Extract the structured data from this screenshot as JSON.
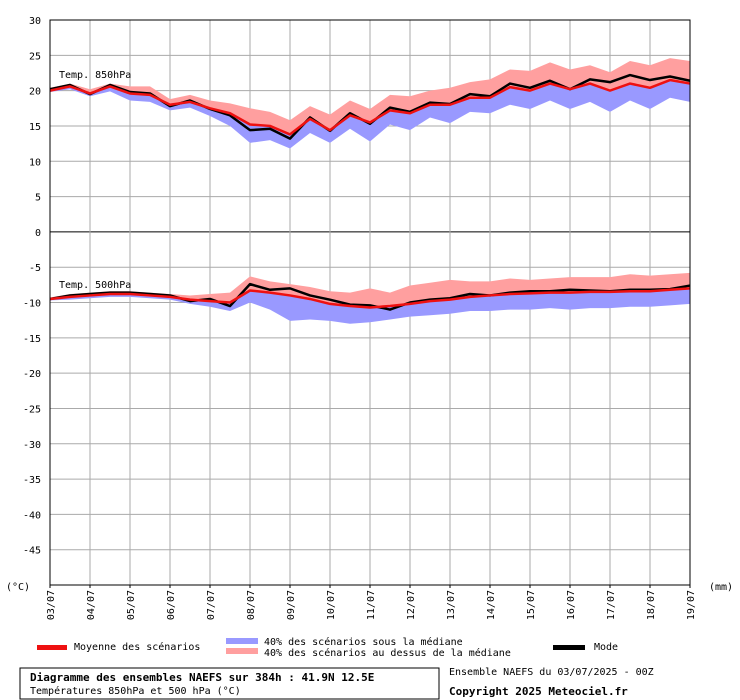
{
  "chart_data": {
    "type": "line",
    "title": "Diagramme des ensembles NAEFS sur 384h : 41.9N 12.5E",
    "subtitle": "Températures 850hPa et 500 hPa (°C)",
    "run_info": "Ensemble NAEFS du 03/07/2025 - 00Z",
    "copyright": "Copyright 2025 Meteociel.fr",
    "ylabel_left": "(°C)",
    "ylabel_right": "(mm)",
    "ylim": [
      -50,
      30
    ],
    "yticks": [
      30,
      25,
      20,
      15,
      10,
      5,
      0,
      -5,
      -10,
      -15,
      -20,
      -25,
      -30,
      -35,
      -40,
      -45
    ],
    "xlim": [
      0,
      16
    ],
    "x_tick_labels": [
      "03/07",
      "04/07",
      "05/07",
      "06/07",
      "07/07",
      "08/07",
      "09/07",
      "10/07",
      "11/07",
      "12/07",
      "13/07",
      "14/07",
      "15/07",
      "16/07",
      "17/07",
      "18/07",
      "19/07"
    ],
    "grid": true,
    "legend": {
      "position": "bottom",
      "mean": "Moyenne des scénarios",
      "below": "40% des scénarios sous la médiane",
      "above": "40% des scénarios au dessus de la médiane",
      "mode": "Mode"
    },
    "colors": {
      "mean": "#ee1111",
      "mode": "#000000",
      "band_below": "#9999ff",
      "band_above": "#ff9f9f",
      "grid": "#aaaaaa"
    },
    "panels": [
      {
        "name": "Temp. 850hPa",
        "x": [
          0,
          0.5,
          1,
          1.5,
          2,
          2.5,
          3,
          3.5,
          4,
          4.5,
          5,
          5.5,
          6,
          6.5,
          7,
          7.5,
          8,
          8.5,
          9,
          9.5,
          10,
          10.5,
          11,
          11.5,
          12,
          12.5,
          13,
          13.5,
          14,
          14.5,
          15,
          15.5,
          16
        ],
        "mean": [
          20.0,
          20.6,
          19.6,
          20.6,
          19.6,
          19.4,
          18.0,
          18.4,
          17.5,
          16.8,
          15.2,
          15.0,
          13.8,
          16.0,
          14.4,
          16.5,
          15.5,
          17.2,
          16.8,
          18.0,
          18.0,
          19.0,
          19.0,
          20.5,
          20.0,
          21.0,
          20.2,
          21.0,
          20.0,
          21.0,
          20.4,
          21.5,
          21.0
        ],
        "mode": [
          20.2,
          20.8,
          19.5,
          20.8,
          19.8,
          19.6,
          17.8,
          18.6,
          17.4,
          16.5,
          14.4,
          14.6,
          13.2,
          16.2,
          14.3,
          16.8,
          15.3,
          17.6,
          17.0,
          18.3,
          18.1,
          19.5,
          19.2,
          21.0,
          20.4,
          21.4,
          20.2,
          21.6,
          21.2,
          22.2,
          21.5,
          22.0,
          21.4
        ],
        "upper": [
          20.4,
          21.0,
          20.2,
          21.0,
          20.6,
          20.6,
          18.8,
          19.4,
          18.6,
          18.2,
          17.5,
          17.0,
          15.8,
          17.8,
          16.6,
          18.6,
          17.4,
          19.4,
          19.2,
          20.0,
          20.4,
          21.2,
          21.6,
          23.0,
          22.8,
          24.0,
          23.0,
          23.6,
          22.6,
          24.2,
          23.6,
          24.6,
          24.2
        ],
        "lower": [
          19.8,
          20.2,
          19.2,
          19.9,
          18.6,
          18.4,
          17.2,
          17.6,
          16.4,
          15.0,
          12.6,
          13.0,
          11.8,
          14.0,
          12.6,
          14.6,
          12.8,
          15.2,
          14.4,
          16.2,
          15.4,
          17.0,
          16.8,
          18.0,
          17.4,
          18.6,
          17.4,
          18.4,
          17.0,
          18.6,
          17.4,
          19.0,
          18.4
        ]
      },
      {
        "name": "Temp. 500hPa",
        "x": [
          0,
          0.5,
          1,
          1.5,
          2,
          2.5,
          3,
          3.5,
          4,
          4.5,
          5,
          5.5,
          6,
          6.5,
          7,
          7.5,
          8,
          8.5,
          9,
          9.5,
          10,
          10.5,
          11,
          11.5,
          12,
          12.5,
          13,
          13.5,
          14,
          14.5,
          15,
          15.5,
          16
        ],
        "mean": [
          -9.5,
          -9.2,
          -9.0,
          -8.8,
          -8.8,
          -9.0,
          -9.2,
          -9.6,
          -9.8,
          -10.0,
          -8.3,
          -8.6,
          -9.0,
          -9.5,
          -10.2,
          -10.5,
          -10.7,
          -10.5,
          -10.2,
          -9.8,
          -9.6,
          -9.2,
          -9.0,
          -8.8,
          -8.7,
          -8.6,
          -8.6,
          -8.5,
          -8.5,
          -8.4,
          -8.4,
          -8.2,
          -8.0
        ],
        "mode": [
          -9.5,
          -9.0,
          -8.8,
          -8.6,
          -8.6,
          -8.8,
          -9.0,
          -9.8,
          -9.5,
          -10.5,
          -7.4,
          -8.2,
          -8.0,
          -9.0,
          -9.6,
          -10.3,
          -10.4,
          -11.0,
          -10.0,
          -9.6,
          -9.4,
          -8.8,
          -9.0,
          -8.6,
          -8.4,
          -8.4,
          -8.2,
          -8.3,
          -8.4,
          -8.2,
          -8.2,
          -8.1,
          -7.6
        ],
        "upper": [
          -9.3,
          -8.8,
          -8.6,
          -8.4,
          -8.4,
          -8.6,
          -8.8,
          -9.0,
          -8.8,
          -8.6,
          -6.3,
          -7.0,
          -7.4,
          -7.8,
          -8.4,
          -8.6,
          -8.0,
          -8.6,
          -7.6,
          -7.2,
          -6.8,
          -7.0,
          -7.0,
          -6.6,
          -6.8,
          -6.6,
          -6.4,
          -6.4,
          -6.4,
          -6.0,
          -6.2,
          -6.0,
          -5.8
        ],
        "lower": [
          -9.7,
          -9.6,
          -9.4,
          -9.2,
          -9.2,
          -9.4,
          -9.6,
          -10.2,
          -10.6,
          -11.2,
          -10.0,
          -11.0,
          -12.6,
          -12.4,
          -12.6,
          -13.0,
          -12.8,
          -12.4,
          -12.0,
          -11.8,
          -11.6,
          -11.2,
          -11.2,
          -11.0,
          -11.0,
          -10.8,
          -11.0,
          -10.8,
          -10.8,
          -10.6,
          -10.6,
          -10.4,
          -10.2
        ]
      }
    ]
  }
}
